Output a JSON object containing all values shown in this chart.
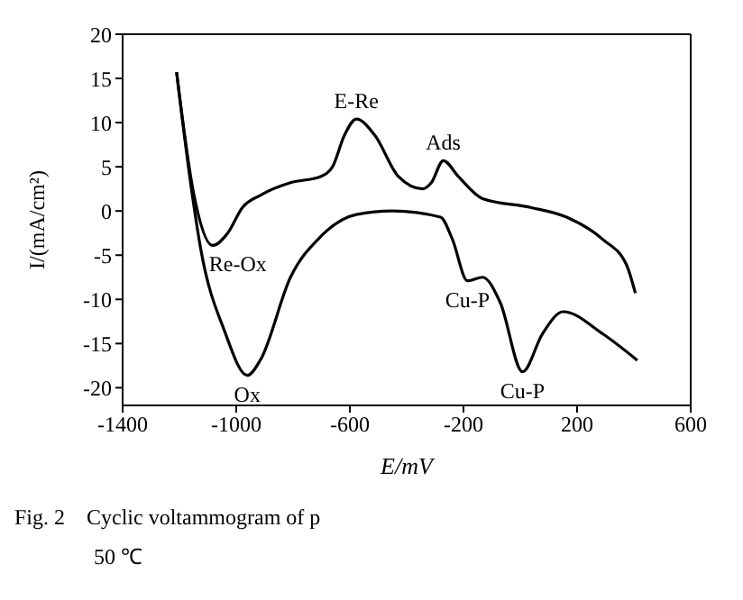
{
  "chart_data": {
    "type": "line",
    "xlabel": "E/mV",
    "ylabel": "I/(mA/cm²)",
    "xlim": [
      -1400,
      600
    ],
    "xticks": [
      -1400,
      -1000,
      -600,
      -200,
      200,
      600
    ],
    "ylim": [
      -22,
      20
    ],
    "yticks": [
      -20,
      -15,
      -10,
      -5,
      0,
      5,
      10,
      15,
      20
    ],
    "legend": false,
    "marker": "none",
    "line_style": "solid",
    "series": [
      {
        "color": "#000000",
        "x": [
          -1210,
          -1150,
          -1083,
          -1030,
          -978,
          -914,
          -809,
          -703,
          -661,
          -620,
          -577,
          -513,
          -429,
          -344,
          -313,
          -271,
          -218,
          -133,
          36,
          163,
          290,
          374,
          405
        ],
        "values": [
          15.7,
          2,
          -3.9,
          -2.5,
          0.4,
          1.8,
          3.2,
          3.9,
          5,
          8.5,
          10.4,
          8.6,
          3.9,
          2.5,
          3.2,
          5.7,
          3.9,
          1.4,
          0.4,
          -0.7,
          -3.2,
          -6.1,
          -9.3
        ]
      },
      {
        "color": "#000000",
        "x": [
          -1210,
          -1160,
          -1125,
          -1041,
          -961,
          -914,
          -809,
          -703,
          -577,
          -450,
          -281,
          -239,
          -186,
          -133,
          -70,
          8,
          78,
          151,
          290,
          412
        ],
        "values": [
          15.7,
          3,
          -4.3,
          -13.6,
          -18.6,
          -16.8,
          -7.5,
          -2.9,
          -0.4,
          0,
          -0.7,
          -3.2,
          -7.9,
          -7.5,
          -10.4,
          -18.2,
          -13.9,
          -11.4,
          -13.9,
          -16.9
        ]
      }
    ],
    "annotations": [
      {
        "text": "E-Re",
        "x": -577,
        "y": 10.4
      },
      {
        "text": "Ads",
        "x": -271,
        "y": 5.7
      },
      {
        "text": "Re-Ox",
        "x": -1083,
        "y": -3.9
      },
      {
        "text": "Ox",
        "x": -961,
        "y": -18.6
      },
      {
        "text": "Cu-P",
        "x": -186,
        "y": -7.9
      },
      {
        "text": "Cu-P",
        "x": 8,
        "y": -18.2
      },
      "Fig. 2    Cyclic voltammogram of p",
      "50 ℃"
    ]
  }
}
